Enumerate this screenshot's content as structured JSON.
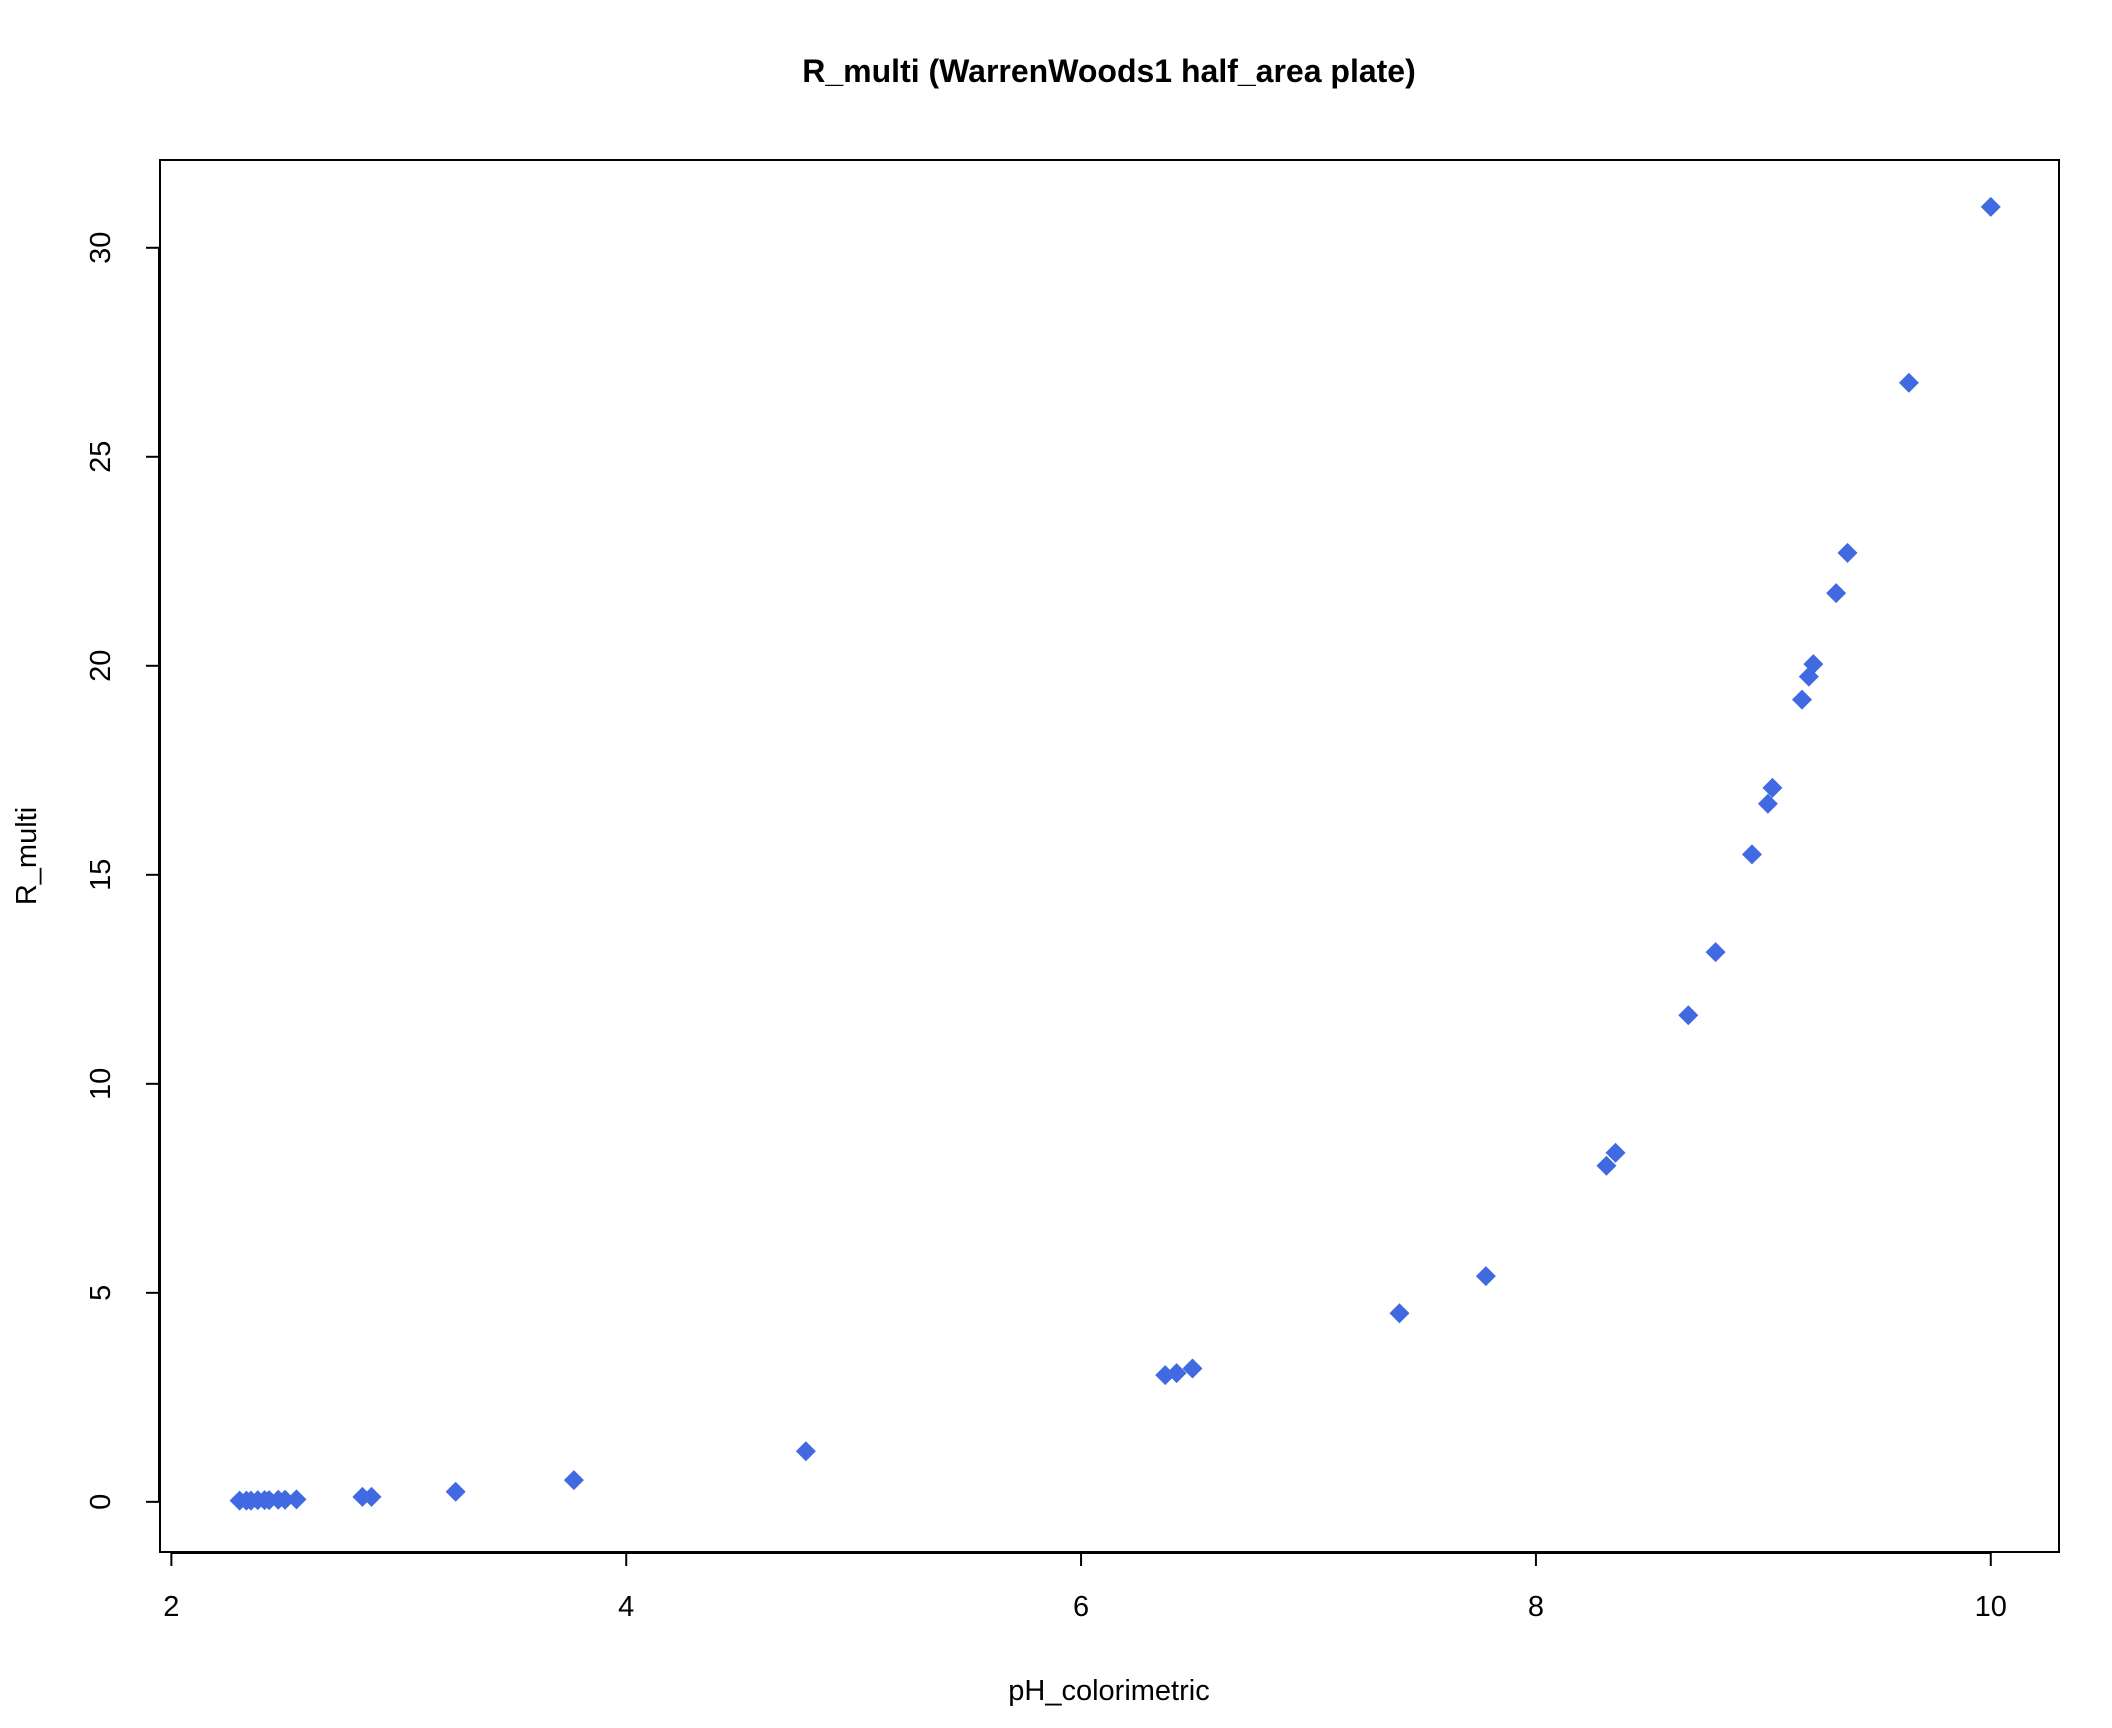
{
  "chart_data": {
    "type": "scatter",
    "title": "R_multi (WarrenWoods1 half_area plate)",
    "xlabel": "pH_colorimetric",
    "ylabel": "R_multi",
    "xlim": [
      1.95,
      10.3
    ],
    "ylim": [
      -1.2,
      32.1
    ],
    "xticks": [
      2,
      4,
      6,
      8,
      10
    ],
    "yticks": [
      0,
      5,
      10,
      15,
      20,
      25,
      30
    ],
    "xtick_labels": [
      "2",
      "4",
      "6",
      "8",
      "10"
    ],
    "ytick_labels": [
      "0",
      "5",
      "10",
      "15",
      "20",
      "25",
      "30"
    ],
    "grid": false,
    "marker": "diamond",
    "color": "#4169E1",
    "series": [
      {
        "x": [
          2.3,
          2.33,
          2.35,
          2.38,
          2.41,
          2.43,
          2.47,
          2.5,
          2.55,
          2.84,
          2.88,
          3.25,
          3.77,
          4.79,
          6.37,
          6.42,
          6.49,
          7.4,
          7.78,
          8.31,
          8.35,
          8.67,
          8.79,
          8.95,
          9.02,
          9.04,
          9.17,
          9.2,
          9.22,
          9.32,
          9.37,
          9.64,
          10.0
        ],
        "y": [
          0.03,
          0.03,
          0.03,
          0.04,
          0.04,
          0.04,
          0.05,
          0.05,
          0.06,
          0.12,
          0.12,
          0.24,
          0.52,
          1.21,
          3.03,
          3.08,
          3.19,
          4.51,
          5.4,
          8.04,
          8.35,
          11.64,
          13.15,
          15.49,
          16.7,
          17.08,
          19.19,
          19.74,
          20.04,
          21.74,
          22.7,
          26.77,
          30.98
        ]
      }
    ]
  }
}
